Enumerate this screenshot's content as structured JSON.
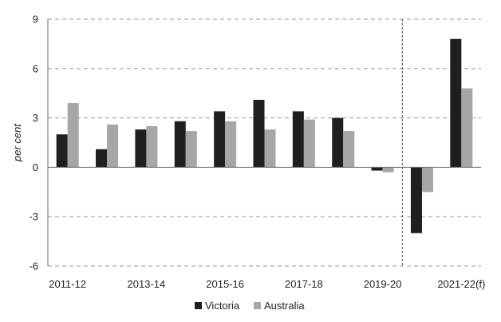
{
  "chart_data": {
    "type": "bar",
    "title": "",
    "xlabel": "",
    "ylabel": "per cent",
    "ylim": [
      -6,
      9
    ],
    "yticks": [
      9,
      6,
      3,
      0,
      -3,
      -6
    ],
    "categories": [
      "2011-12",
      "2012-13",
      "2013-14",
      "2014-15",
      "2015-16",
      "2016-17",
      "2017-18",
      "2018-19",
      "2019-20",
      "2020-21",
      "2021-22(f)"
    ],
    "xtick_labels": [
      "2011-12",
      "",
      "2013-14",
      "",
      "2015-16",
      "",
      "2017-18",
      "",
      "2019-20",
      "",
      "2021-22(f)"
    ],
    "series": [
      {
        "name": "Victoria",
        "color": "#1f1f1f",
        "values": [
          2.0,
          1.1,
          2.3,
          2.8,
          3.4,
          4.1,
          3.4,
          3.0,
          -0.2,
          -4.0,
          7.8
        ]
      },
      {
        "name": "Australia",
        "color": "#a6a6a6",
        "values": [
          3.9,
          2.6,
          2.5,
          2.2,
          2.8,
          2.3,
          2.9,
          2.2,
          -0.3,
          -1.5,
          4.8
        ]
      }
    ],
    "grid": true,
    "grid_style": "dashed",
    "forecast_divider_after_category": "2019-20",
    "legend_position": "bottom"
  }
}
